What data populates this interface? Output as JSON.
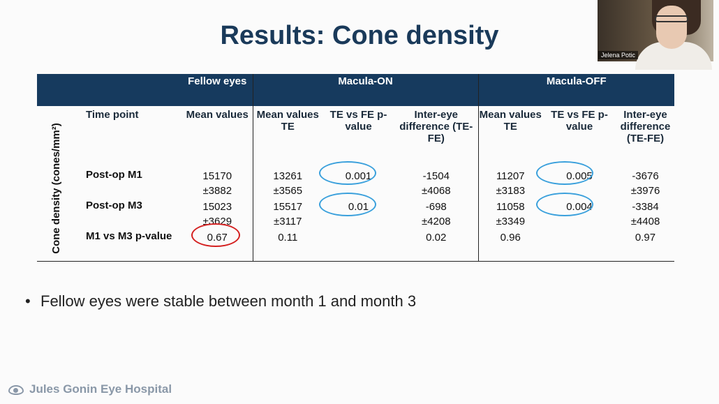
{
  "slide": {
    "title": "Results: Cone density",
    "bullet": "Fellow eyes were stable between month 1 and month 3",
    "footer": "Jules Gonin Eye Hospital"
  },
  "video": {
    "participant_name": "Jelena Potic"
  },
  "table": {
    "group_headers": [
      "Fellow eyes",
      "Macula-ON",
      "Macula-OFF"
    ],
    "column_headers": [
      "Time point",
      "Mean values",
      "Mean values TE",
      "TE vs FE p-value",
      "Inter-eye difference (TE-FE)",
      "Mean values TE",
      "TE vs FE p-value",
      "Inter-eye difference (TE-FE)"
    ],
    "row_group_label": "Cone density (cones/mm²)",
    "rows": [
      {
        "time_point": "Post-op M1",
        "fe_mean": "15170",
        "fe_sd": "±3882",
        "on_mean": "13261",
        "on_sd": "±3565",
        "on_p": "0.001",
        "on_diff": "-1504",
        "on_diff_sd": "±4068",
        "off_mean": "11207",
        "off_sd": "±3183",
        "off_p": "0.005",
        "off_diff": "-3676",
        "off_diff_sd": "±3976"
      },
      {
        "time_point": "Post-op M3",
        "fe_mean": "15023",
        "fe_sd": "±3629",
        "on_mean": "15517",
        "on_sd": "±3117",
        "on_p": "0.01",
        "on_diff": "-698",
        "on_diff_sd": "±4208",
        "off_mean": "11058",
        "off_sd": "±3349",
        "off_p": "0.004",
        "off_diff": "-3384",
        "off_diff_sd": "±4408"
      },
      {
        "time_point": "M1 vs M3 p-value",
        "fe_p": "0.67",
        "on_p": "0.11",
        "on_diff_p": "0.02",
        "off_p": "0.96",
        "off_diff_p": "0.97"
      }
    ]
  },
  "colors": {
    "header_bg": "#163a5e",
    "title": "#1a3a5a",
    "highlight_blue": "#3aa0dc",
    "highlight_red": "#d42020"
  }
}
